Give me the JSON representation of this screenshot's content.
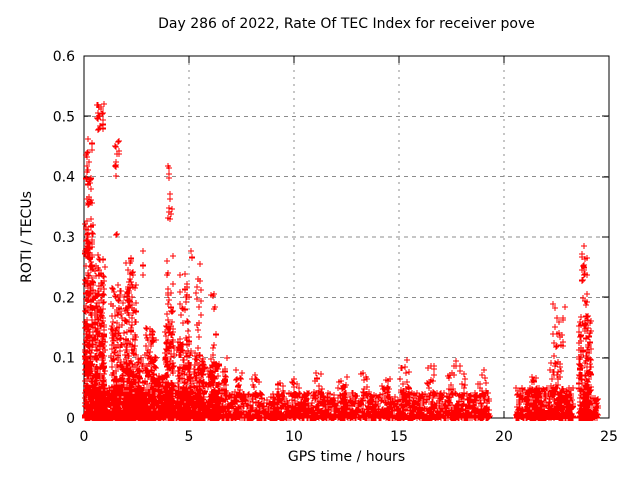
{
  "chart_data": {
    "type": "scatter",
    "title": "Day 286 of 2022, Rate Of TEC Index for receiver pove",
    "xlabel": "GPS time / hours",
    "ylabel": "ROTI / TECUs",
    "xlim": [
      0,
      25
    ],
    "ylim": [
      0,
      0.6
    ],
    "xticks": {
      "values": [
        0,
        5,
        10,
        15,
        20,
        25
      ],
      "labels": [
        "0",
        "5",
        "10",
        "15",
        "20",
        "25"
      ]
    },
    "yticks": {
      "values": [
        0,
        0.1,
        0.2,
        0.3,
        0.4,
        0.5,
        0.6
      ],
      "labels": [
        "0",
        "0.1",
        "0.2",
        "0.3",
        "0.4",
        "0.5",
        "0.6"
      ]
    },
    "grid": {
      "show": true,
      "color": "#8c8c8c",
      "style": "dashed"
    },
    "marker": {
      "shape": "plus",
      "color": "#ff0000",
      "size": 7
    },
    "frame_color": "#000000",
    "background": "#ffffff",
    "legend": "none",
    "data_gaps_hours": [
      [
        19.35,
        20.55
      ]
    ],
    "clusters_note": "Dense scatter of ROTI vs GPS time encoded as cluster distributions: x0/x1 and y0/y1 are hour and TECU ranges, n is point count, p is bottom-bias exponent (1 = uniform).",
    "clusters": [
      {
        "x0": 0.05,
        "x1": 0.45,
        "y0": 0.0,
        "y1": 0.36,
        "n": 380,
        "p": 1.8
      },
      {
        "x0": 0.08,
        "x1": 0.38,
        "y0": 0.36,
        "y1": 0.475,
        "n": 26,
        "p": 1
      },
      {
        "x0": 0.6,
        "x1": 0.95,
        "y0": 0.475,
        "y1": 0.52,
        "n": 22,
        "p": 1
      },
      {
        "x0": 0.5,
        "x1": 1.0,
        "y0": 0.0,
        "y1": 0.27,
        "n": 420,
        "p": 2.6
      },
      {
        "x0": 1.0,
        "x1": 1.3,
        "y0": 0.0,
        "y1": 0.05,
        "n": 60,
        "p": 2
      },
      {
        "x0": 1.3,
        "x1": 1.8,
        "y0": 0.0,
        "y1": 0.22,
        "n": 280,
        "p": 2.4
      },
      {
        "x0": 1.42,
        "x1": 1.68,
        "y0": 0.4,
        "y1": 0.462,
        "n": 13,
        "p": 1
      },
      {
        "x0": 1.5,
        "x1": 1.6,
        "y0": 0.295,
        "y1": 0.31,
        "n": 2,
        "p": 1
      },
      {
        "x0": 1.85,
        "x1": 2.5,
        "y0": 0.0,
        "y1": 0.235,
        "n": 330,
        "p": 2.6
      },
      {
        "x0": 2.0,
        "x1": 2.35,
        "y0": 0.235,
        "y1": 0.275,
        "n": 10,
        "p": 1
      },
      {
        "x0": 2.5,
        "x1": 2.85,
        "y0": 0.0,
        "y1": 0.1,
        "n": 140,
        "p": 2.2
      },
      {
        "x0": 2.75,
        "x1": 2.95,
        "y0": 0.22,
        "y1": 0.28,
        "n": 4,
        "p": 1
      },
      {
        "x0": 2.9,
        "x1": 3.45,
        "y0": 0.0,
        "y1": 0.15,
        "n": 230,
        "p": 2.2
      },
      {
        "x0": 3.5,
        "x1": 3.85,
        "y0": 0.0,
        "y1": 0.07,
        "n": 110,
        "p": 2
      },
      {
        "x0": 3.85,
        "x1": 4.3,
        "y0": 0.0,
        "y1": 0.155,
        "n": 220,
        "p": 2.2
      },
      {
        "x0": 3.95,
        "x1": 4.25,
        "y0": 0.155,
        "y1": 0.3,
        "n": 22,
        "p": 1.2
      },
      {
        "x0": 4.0,
        "x1": 4.18,
        "y0": 0.3,
        "y1": 0.42,
        "n": 12,
        "p": 1
      },
      {
        "x0": 4.45,
        "x1": 5.1,
        "y0": 0.0,
        "y1": 0.13,
        "n": 260,
        "p": 2.3
      },
      {
        "x0": 4.55,
        "x1": 5.0,
        "y0": 0.13,
        "y1": 0.245,
        "n": 26,
        "p": 1.3
      },
      {
        "x0": 5.05,
        "x1": 5.15,
        "y0": 0.25,
        "y1": 0.28,
        "n": 3,
        "p": 1
      },
      {
        "x0": 5.2,
        "x1": 5.75,
        "y0": 0.0,
        "y1": 0.115,
        "n": 220,
        "p": 2.3
      },
      {
        "x0": 5.3,
        "x1": 5.6,
        "y0": 0.115,
        "y1": 0.27,
        "n": 16,
        "p": 1.4
      },
      {
        "x0": 5.9,
        "x1": 6.45,
        "y0": 0.0,
        "y1": 0.09,
        "n": 170,
        "p": 2.2
      },
      {
        "x0": 6.0,
        "x1": 6.3,
        "y0": 0.09,
        "y1": 0.21,
        "n": 12,
        "p": 1.3
      },
      {
        "x0": 0.05,
        "x1": 6.6,
        "y0": 0.0,
        "y1": 0.045,
        "n": 600,
        "p": 2.2
      },
      {
        "x0": 6.6,
        "x1": 19.35,
        "y0": 0.0,
        "y1": 0.042,
        "n": 1600,
        "p": 2.0
      },
      {
        "x0": 6.55,
        "x1": 6.8,
        "y0": 0.04,
        "y1": 0.105,
        "n": 26,
        "p": 1.6
      },
      {
        "x0": 7.2,
        "x1": 7.55,
        "y0": 0.035,
        "y1": 0.08,
        "n": 16,
        "p": 1.5
      },
      {
        "x0": 8.0,
        "x1": 8.35,
        "y0": 0.035,
        "y1": 0.075,
        "n": 14,
        "p": 1.5
      },
      {
        "x0": 9.2,
        "x1": 9.5,
        "y0": 0.035,
        "y1": 0.065,
        "n": 10,
        "p": 1.5
      },
      {
        "x0": 9.9,
        "x1": 10.25,
        "y0": 0.035,
        "y1": 0.07,
        "n": 14,
        "p": 1.5
      },
      {
        "x0": 10.9,
        "x1": 11.4,
        "y0": 0.035,
        "y1": 0.075,
        "n": 16,
        "p": 1.5
      },
      {
        "x0": 12.1,
        "x1": 12.55,
        "y0": 0.035,
        "y1": 0.08,
        "n": 16,
        "p": 1.5
      },
      {
        "x0": 13.2,
        "x1": 13.6,
        "y0": 0.035,
        "y1": 0.075,
        "n": 14,
        "p": 1.5
      },
      {
        "x0": 14.2,
        "x1": 14.55,
        "y0": 0.035,
        "y1": 0.068,
        "n": 12,
        "p": 1.5
      },
      {
        "x0": 15.05,
        "x1": 15.5,
        "y0": 0.035,
        "y1": 0.105,
        "n": 26,
        "p": 1.5
      },
      {
        "x0": 16.3,
        "x1": 16.75,
        "y0": 0.035,
        "y1": 0.09,
        "n": 18,
        "p": 1.5
      },
      {
        "x0": 17.3,
        "x1": 18.15,
        "y0": 0.035,
        "y1": 0.095,
        "n": 30,
        "p": 1.5
      },
      {
        "x0": 18.6,
        "x1": 19.15,
        "y0": 0.035,
        "y1": 0.08,
        "n": 16,
        "p": 1.5
      },
      {
        "x0": 20.55,
        "x1": 23.3,
        "y0": 0.0,
        "y1": 0.05,
        "n": 500,
        "p": 2.1
      },
      {
        "x0": 21.25,
        "x1": 21.65,
        "y0": 0.04,
        "y1": 0.07,
        "n": 12,
        "p": 1.4
      },
      {
        "x0": 22.2,
        "x1": 22.7,
        "y0": 0.05,
        "y1": 0.105,
        "n": 22,
        "p": 1.4
      },
      {
        "x0": 22.3,
        "x1": 22.9,
        "y0": 0.105,
        "y1": 0.19,
        "n": 20,
        "p": 1.2
      },
      {
        "x0": 23.55,
        "x1": 24.15,
        "y0": 0.0,
        "y1": 0.17,
        "n": 300,
        "p": 2.6
      },
      {
        "x0": 23.7,
        "x1": 24.0,
        "y0": 0.225,
        "y1": 0.272,
        "n": 16,
        "p": 1
      },
      {
        "x0": 23.78,
        "x1": 23.95,
        "y0": 0.185,
        "y1": 0.21,
        "n": 5,
        "p": 1
      },
      {
        "x0": 23.82,
        "x1": 23.88,
        "y0": 0.282,
        "y1": 0.287,
        "n": 1,
        "p": 1
      },
      {
        "x0": 24.2,
        "x1": 24.5,
        "y0": 0.0,
        "y1": 0.035,
        "n": 40,
        "p": 1.8
      }
    ]
  }
}
